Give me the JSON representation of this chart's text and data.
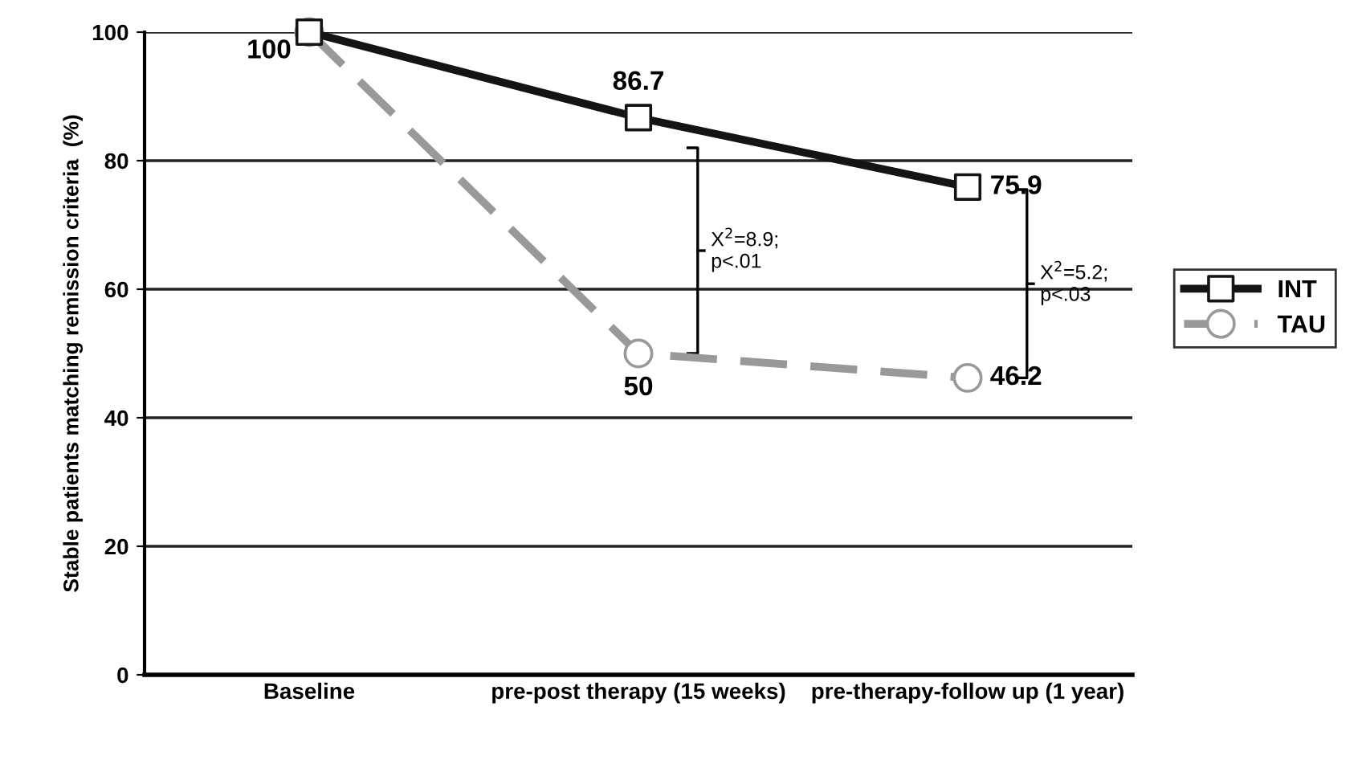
{
  "chart_data": {
    "type": "line",
    "ylabel": "Stable patients matching remission criteria  (%)",
    "categories": [
      "Baseline",
      "pre-post therapy (15 weeks)",
      "pre-therapy-follow up (1 year)"
    ],
    "series": [
      {
        "name": "INT",
        "color": "#141414",
        "marker": "square",
        "line_style": "solid",
        "values": [
          100,
          86.7,
          75.9
        ],
        "value_labels": [
          "100",
          "86.7",
          "75.9"
        ]
      },
      {
        "name": "TAU",
        "color": "#999999",
        "marker": "circle",
        "line_style": "dashed",
        "values": [
          100,
          50,
          46.2
        ],
        "value_labels": [
          null,
          "50",
          "46.2"
        ]
      }
    ],
    "ylim": [
      0,
      100
    ],
    "yticks": [
      0,
      20,
      40,
      60,
      80,
      100
    ],
    "grid": "y",
    "legend": "right",
    "annotations": [
      "X$^{2}$=8.9;\np<.01",
      "X$^{2}$=5.2;\np<.03"
    ]
  }
}
